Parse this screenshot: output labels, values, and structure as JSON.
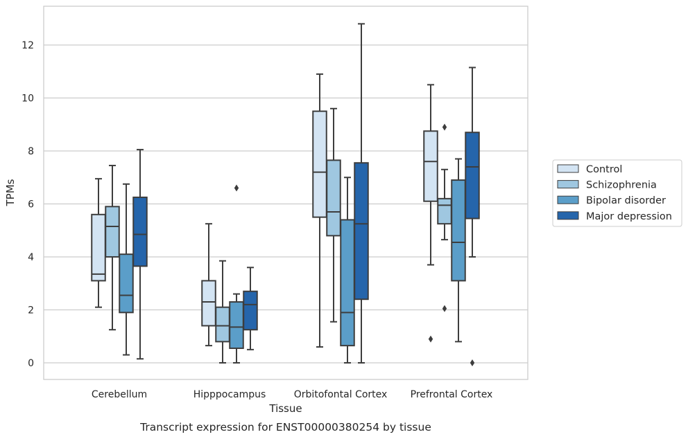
{
  "chart_data": {
    "type": "box",
    "xlabel": "Tissue",
    "ylabel": "TPMs",
    "caption": "Transcript expression for ENST00000380254 by tissue",
    "ylim": [
      -0.6,
      13.4
    ],
    "yticks": [
      0,
      2,
      4,
      6,
      8,
      10,
      12
    ],
    "grid": true,
    "legend_position": "right",
    "categories": [
      "Cerebellum",
      "Hipppocampus",
      "Orbitofontal Cortex",
      "Prefrontal Cortex"
    ],
    "series": [
      {
        "name": "Control",
        "color": "#d3e4f3",
        "boxes": [
          {
            "whisker_low": 2.1,
            "q1": 3.1,
            "median": 3.35,
            "q3": 5.6,
            "whisker_high": 6.95,
            "outliers": []
          },
          {
            "whisker_low": 0.65,
            "q1": 1.4,
            "median": 2.3,
            "q3": 3.1,
            "whisker_high": 5.25,
            "outliers": []
          },
          {
            "whisker_low": 0.6,
            "q1": 5.5,
            "median": 7.2,
            "q3": 9.5,
            "whisker_high": 10.9,
            "outliers": []
          },
          {
            "whisker_low": 3.7,
            "q1": 6.1,
            "median": 7.6,
            "q3": 8.75,
            "whisker_high": 10.5,
            "outliers": [
              0.9
            ]
          }
        ]
      },
      {
        "name": "Schizophrenia",
        "color": "#9fc7e0",
        "boxes": [
          {
            "whisker_low": 1.25,
            "q1": 4.0,
            "median": 5.15,
            "q3": 5.9,
            "whisker_high": 7.45,
            "outliers": []
          },
          {
            "whisker_low": 0.0,
            "q1": 0.8,
            "median": 1.4,
            "q3": 2.1,
            "whisker_high": 3.85,
            "outliers": []
          },
          {
            "whisker_low": 1.55,
            "q1": 4.8,
            "median": 5.7,
            "q3": 7.65,
            "whisker_high": 9.6,
            "outliers": []
          },
          {
            "whisker_low": 4.65,
            "q1": 5.25,
            "median": 5.95,
            "q3": 6.2,
            "whisker_high": 7.3,
            "outliers": [
              8.9,
              2.05
            ]
          }
        ]
      },
      {
        "name": "Bipolar disorder",
        "color": "#5b9ec9",
        "boxes": [
          {
            "whisker_low": 0.3,
            "q1": 1.9,
            "median": 2.55,
            "q3": 4.1,
            "whisker_high": 6.75,
            "outliers": []
          },
          {
            "whisker_low": 0.0,
            "q1": 0.55,
            "median": 1.35,
            "q3": 2.3,
            "whisker_high": 2.6,
            "outliers": [
              6.6
            ]
          },
          {
            "whisker_low": 0.0,
            "q1": 0.65,
            "median": 1.9,
            "q3": 5.4,
            "whisker_high": 7.0,
            "outliers": []
          },
          {
            "whisker_low": 0.8,
            "q1": 3.1,
            "median": 4.55,
            "q3": 6.9,
            "whisker_high": 7.7,
            "outliers": []
          }
        ]
      },
      {
        "name": "Major depression",
        "color": "#2565ab",
        "boxes": [
          {
            "whisker_low": 0.15,
            "q1": 3.65,
            "median": 4.85,
            "q3": 6.25,
            "whisker_high": 8.05,
            "outliers": []
          },
          {
            "whisker_low": 0.5,
            "q1": 1.25,
            "median": 2.2,
            "q3": 2.7,
            "whisker_high": 3.6,
            "outliers": []
          },
          {
            "whisker_low": 0.0,
            "q1": 2.4,
            "median": 5.25,
            "q3": 7.55,
            "whisker_high": 12.8,
            "outliers": []
          },
          {
            "whisker_low": 4.0,
            "q1": 5.45,
            "median": 7.4,
            "q3": 8.7,
            "whisker_high": 11.15,
            "outliers": [
              0.0
            ]
          }
        ]
      }
    ]
  }
}
